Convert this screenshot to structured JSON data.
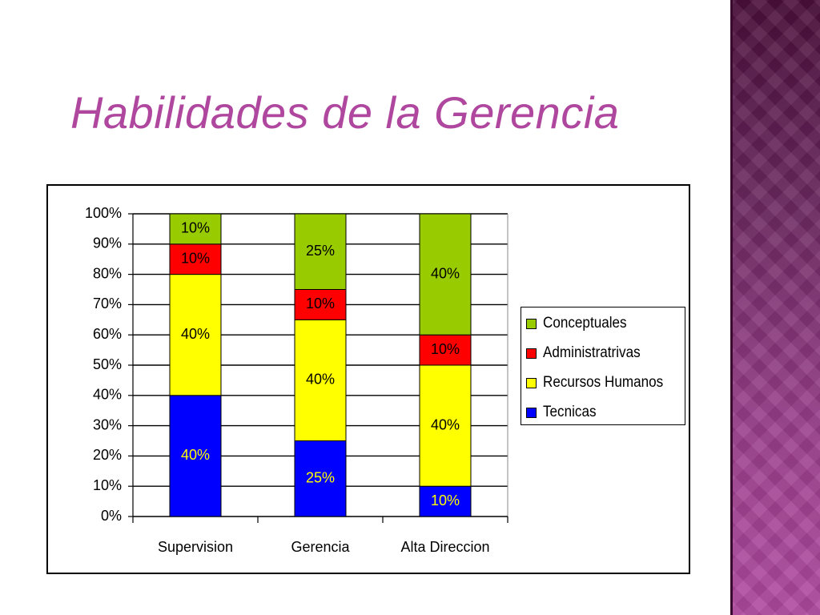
{
  "slide": {
    "title": "Habilidades de la Gerencia"
  },
  "chart_data": {
    "type": "bar",
    "stacked": true,
    "categories": [
      "Supervision",
      "Gerencia",
      "Alta Direccion"
    ],
    "series": [
      {
        "name": "Tecnicas",
        "values": [
          40,
          25,
          10
        ],
        "labels": [
          "40%",
          "25%",
          "10%"
        ],
        "color": "#0000ff",
        "label_color": "#ffff00"
      },
      {
        "name": "Recursos Humanos",
        "values": [
          40,
          40,
          40
        ],
        "labels": [
          "40%",
          "40%",
          "40%"
        ],
        "color": "#ffff00",
        "label_color": "#000000"
      },
      {
        "name": "Administratrivas",
        "values": [
          10,
          10,
          10
        ],
        "labels": [
          "10%",
          "10%",
          "10%"
        ],
        "color": "#ff0000",
        "label_color": "#000000"
      },
      {
        "name": "Conceptuales",
        "values": [
          10,
          25,
          40
        ],
        "labels": [
          "10%",
          "25%",
          "40%"
        ],
        "color": "#99cc00",
        "label_color": "#000000"
      }
    ],
    "y_ticks": [
      "0%",
      "10%",
      "20%",
      "30%",
      "40%",
      "50%",
      "60%",
      "70%",
      "80%",
      "90%",
      "100%"
    ],
    "ylim": [
      0,
      100
    ],
    "grid": true,
    "legend_placement": "right",
    "legend_order": [
      "Conceptuales",
      "Administratrivas",
      "Recursos Humanos",
      "Tecnicas"
    ]
  },
  "colors": {
    "title": "#b0479f",
    "band_dark": "#4a0f3b",
    "band_light": "#b04aa0"
  }
}
